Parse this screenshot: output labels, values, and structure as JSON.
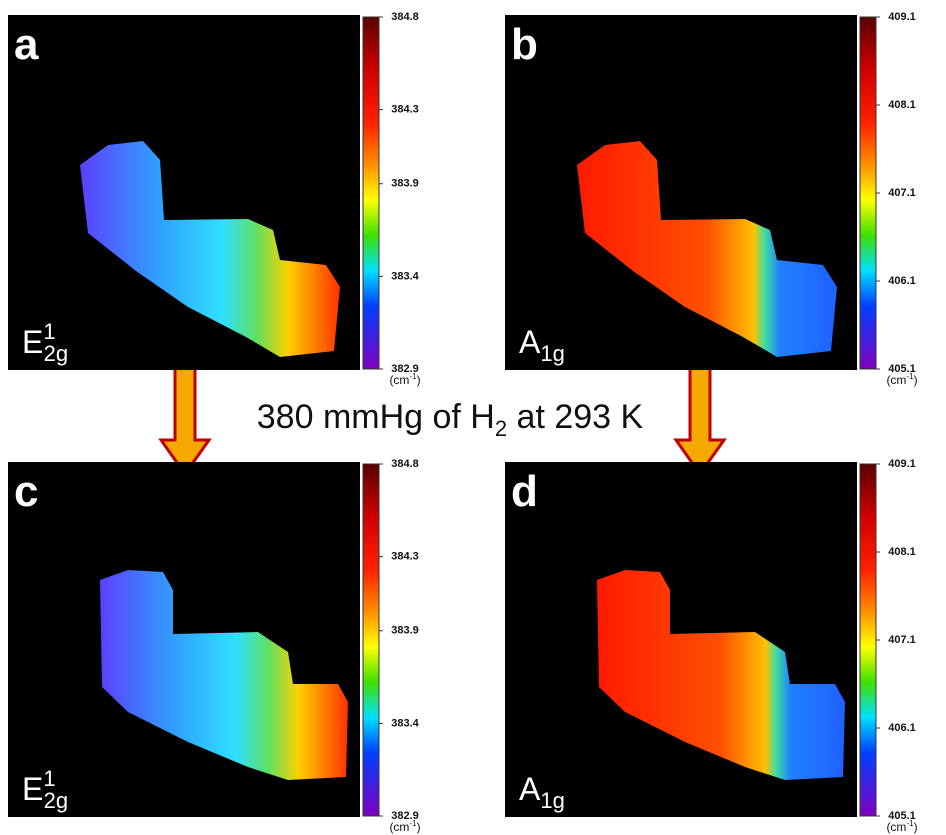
{
  "title": {
    "main": "380 mmHg of H",
    "sub": "2",
    "rest": " at 293 K"
  },
  "panels": [
    {
      "letter": "a",
      "mode": {
        "base": "E",
        "sup": "1",
        "sub": "2g"
      },
      "colorbar": {
        "lim": [
          382.9,
          384.8
        ],
        "ticks": [
          384.8,
          384.3,
          383.9,
          383.4,
          382.9
        ]
      },
      "unit": {
        "base": "(cm",
        "sup": "-1",
        "end": ")"
      }
    },
    {
      "letter": "b",
      "mode": {
        "base": "A",
        "sub": "1g"
      },
      "colorbar": {
        "lim": [
          405.1,
          409.1
        ],
        "ticks": [
          409.1,
          408.1,
          407.1,
          406.1,
          405.1
        ]
      },
      "unit": {
        "base": "(cm",
        "sup": "-1",
        "end": ")"
      }
    },
    {
      "letter": "c",
      "mode": {
        "base": "E",
        "sup": "1",
        "sub": "2g"
      },
      "colorbar": {
        "lim": [
          382.9,
          384.8
        ],
        "ticks": [
          384.8,
          384.3,
          383.9,
          383.4,
          382.9
        ]
      },
      "unit": {
        "base": "(cm",
        "sup": "-1",
        "end": ")"
      }
    },
    {
      "letter": "d",
      "mode": {
        "base": "A",
        "sub": "1g"
      },
      "colorbar": {
        "lim": [
          405.1,
          409.1
        ],
        "ticks": [
          409.1,
          408.1,
          407.1,
          406.1,
          405.1
        ]
      },
      "unit": {
        "base": "(cm",
        "sup": "-1",
        "end": ")"
      }
    }
  ]
}
